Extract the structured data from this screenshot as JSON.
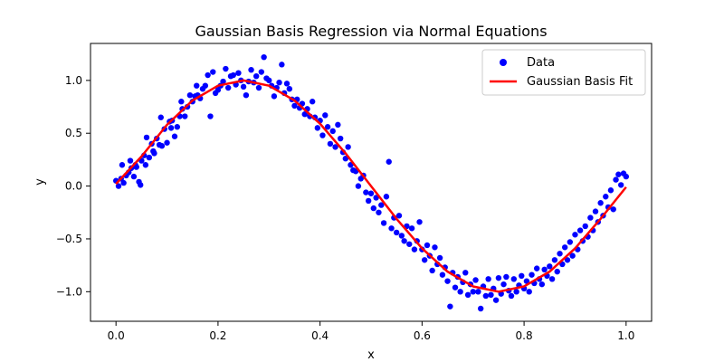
{
  "chart_data": {
    "type": "scatter",
    "title": "Gaussian Basis Regression via Normal Equations",
    "xlabel": "x",
    "ylabel": "y",
    "xlim": [
      -0.05,
      1.05
    ],
    "ylim": [
      -1.28,
      1.35
    ],
    "xticks": [
      0.0,
      0.2,
      0.4,
      0.6,
      0.8,
      1.0
    ],
    "xtick_labels": [
      "0.0",
      "0.2",
      "0.4",
      "0.6",
      "0.8",
      "1.0"
    ],
    "yticks": [
      -1.0,
      -0.5,
      0.0,
      0.5,
      1.0
    ],
    "ytick_labels": [
      "−1.0",
      "−0.5",
      "0.0",
      "0.5",
      "1.0"
    ],
    "grid": false,
    "legend_position": "top-right",
    "series": [
      {
        "name": "Data",
        "kind": "scatter",
        "color": "#0000ff",
        "points": [
          [
            0.0,
            0.05
          ],
          [
            0.005,
            0.0
          ],
          [
            0.01,
            0.07
          ],
          [
            0.012,
            0.2
          ],
          [
            0.015,
            0.03
          ],
          [
            0.02,
            0.1
          ],
          [
            0.025,
            0.13
          ],
          [
            0.028,
            0.24
          ],
          [
            0.03,
            0.17
          ],
          [
            0.035,
            0.09
          ],
          [
            0.038,
            0.2
          ],
          [
            0.04,
            0.18
          ],
          [
            0.045,
            0.04
          ],
          [
            0.048,
            0.01
          ],
          [
            0.05,
            0.24
          ],
          [
            0.055,
            0.29
          ],
          [
            0.058,
            0.2
          ],
          [
            0.06,
            0.46
          ],
          [
            0.065,
            0.27
          ],
          [
            0.07,
            0.4
          ],
          [
            0.073,
            0.33
          ],
          [
            0.075,
            0.31
          ],
          [
            0.08,
            0.45
          ],
          [
            0.085,
            0.39
          ],
          [
            0.088,
            0.65
          ],
          [
            0.09,
            0.38
          ],
          [
            0.095,
            0.54
          ],
          [
            0.1,
            0.41
          ],
          [
            0.105,
            0.61
          ],
          [
            0.108,
            0.55
          ],
          [
            0.11,
            0.62
          ],
          [
            0.115,
            0.47
          ],
          [
            0.12,
            0.56
          ],
          [
            0.125,
            0.66
          ],
          [
            0.128,
            0.8
          ],
          [
            0.13,
            0.73
          ],
          [
            0.135,
            0.66
          ],
          [
            0.14,
            0.75
          ],
          [
            0.145,
            0.86
          ],
          [
            0.15,
            0.8
          ],
          [
            0.155,
            0.85
          ],
          [
            0.158,
            0.95
          ],
          [
            0.16,
            0.86
          ],
          [
            0.165,
            0.83
          ],
          [
            0.17,
            0.92
          ],
          [
            0.175,
            0.95
          ],
          [
            0.18,
            1.05
          ],
          [
            0.185,
            0.66
          ],
          [
            0.19,
            1.08
          ],
          [
            0.195,
            0.88
          ],
          [
            0.2,
            0.91
          ],
          [
            0.205,
            0.95
          ],
          [
            0.21,
            0.99
          ],
          [
            0.215,
            1.11
          ],
          [
            0.22,
            0.93
          ],
          [
            0.225,
            1.04
          ],
          [
            0.23,
            1.05
          ],
          [
            0.235,
            0.96
          ],
          [
            0.24,
            1.07
          ],
          [
            0.245,
            1.0
          ],
          [
            0.25,
            0.94
          ],
          [
            0.255,
            0.86
          ],
          [
            0.26,
            0.99
          ],
          [
            0.265,
            1.1
          ],
          [
            0.27,
            0.98
          ],
          [
            0.275,
            1.04
          ],
          [
            0.28,
            0.93
          ],
          [
            0.285,
            1.08
          ],
          [
            0.29,
            1.22
          ],
          [
            0.295,
            1.02
          ],
          [
            0.3,
            1.0
          ],
          [
            0.305,
            0.95
          ],
          [
            0.31,
            0.85
          ],
          [
            0.315,
            0.93
          ],
          [
            0.32,
            0.98
          ],
          [
            0.325,
            1.15
          ],
          [
            0.33,
            0.88
          ],
          [
            0.335,
            0.97
          ],
          [
            0.34,
            0.92
          ],
          [
            0.345,
            0.82
          ],
          [
            0.35,
            0.76
          ],
          [
            0.355,
            0.82
          ],
          [
            0.36,
            0.74
          ],
          [
            0.365,
            0.78
          ],
          [
            0.37,
            0.68
          ],
          [
            0.375,
            0.73
          ],
          [
            0.38,
            0.66
          ],
          [
            0.385,
            0.8
          ],
          [
            0.39,
            0.65
          ],
          [
            0.395,
            0.55
          ],
          [
            0.4,
            0.62
          ],
          [
            0.405,
            0.48
          ],
          [
            0.41,
            0.67
          ],
          [
            0.415,
            0.56
          ],
          [
            0.42,
            0.4
          ],
          [
            0.425,
            0.52
          ],
          [
            0.43,
            0.37
          ],
          [
            0.435,
            0.58
          ],
          [
            0.44,
            0.45
          ],
          [
            0.445,
            0.32
          ],
          [
            0.45,
            0.26
          ],
          [
            0.455,
            0.37
          ],
          [
            0.46,
            0.2
          ],
          [
            0.465,
            0.15
          ],
          [
            0.47,
            0.14
          ],
          [
            0.475,
            0.0
          ],
          [
            0.48,
            0.07
          ],
          [
            0.485,
            0.1
          ],
          [
            0.49,
            -0.06
          ],
          [
            0.495,
            -0.14
          ],
          [
            0.5,
            -0.07
          ],
          [
            0.505,
            -0.21
          ],
          [
            0.51,
            -0.11
          ],
          [
            0.515,
            -0.25
          ],
          [
            0.52,
            -0.18
          ],
          [
            0.525,
            -0.35
          ],
          [
            0.53,
            -0.1
          ],
          [
            0.535,
            0.23
          ],
          [
            0.54,
            -0.4
          ],
          [
            0.545,
            -0.3
          ],
          [
            0.55,
            -0.44
          ],
          [
            0.555,
            -0.28
          ],
          [
            0.56,
            -0.47
          ],
          [
            0.565,
            -0.52
          ],
          [
            0.57,
            -0.38
          ],
          [
            0.575,
            -0.55
          ],
          [
            0.58,
            -0.4
          ],
          [
            0.585,
            -0.6
          ],
          [
            0.59,
            -0.52
          ],
          [
            0.595,
            -0.34
          ],
          [
            0.6,
            -0.6
          ],
          [
            0.605,
            -0.7
          ],
          [
            0.61,
            -0.56
          ],
          [
            0.615,
            -0.66
          ],
          [
            0.62,
            -0.8
          ],
          [
            0.625,
            -0.58
          ],
          [
            0.63,
            -0.74
          ],
          [
            0.635,
            -0.68
          ],
          [
            0.64,
            -0.84
          ],
          [
            0.645,
            -0.77
          ],
          [
            0.65,
            -0.9
          ],
          [
            0.655,
            -1.14
          ],
          [
            0.66,
            -0.82
          ],
          [
            0.665,
            -0.96
          ],
          [
            0.67,
            -0.86
          ],
          [
            0.675,
            -1.0
          ],
          [
            0.68,
            -0.91
          ],
          [
            0.685,
            -0.82
          ],
          [
            0.69,
            -1.03
          ],
          [
            0.695,
            -0.93
          ],
          [
            0.7,
            -1.0
          ],
          [
            0.705,
            -0.89
          ],
          [
            0.71,
            -1.0
          ],
          [
            0.715,
            -1.16
          ],
          [
            0.72,
            -0.95
          ],
          [
            0.725,
            -1.04
          ],
          [
            0.73,
            -0.88
          ],
          [
            0.735,
            -1.03
          ],
          [
            0.74,
            -0.97
          ],
          [
            0.745,
            -1.08
          ],
          [
            0.75,
            -0.87
          ],
          [
            0.755,
            -1.02
          ],
          [
            0.76,
            -0.93
          ],
          [
            0.765,
            -0.86
          ],
          [
            0.77,
            -0.99
          ],
          [
            0.775,
            -1.04
          ],
          [
            0.78,
            -0.88
          ],
          [
            0.785,
            -1.0
          ],
          [
            0.79,
            -0.94
          ],
          [
            0.795,
            -0.85
          ],
          [
            0.8,
            -0.97
          ],
          [
            0.805,
            -0.9
          ],
          [
            0.81,
            -1.0
          ],
          [
            0.815,
            -0.84
          ],
          [
            0.82,
            -0.92
          ],
          [
            0.825,
            -0.78
          ],
          [
            0.83,
            -0.88
          ],
          [
            0.835,
            -0.93
          ],
          [
            0.84,
            -0.79
          ],
          [
            0.845,
            -0.85
          ],
          [
            0.85,
            -0.76
          ],
          [
            0.855,
            -0.88
          ],
          [
            0.86,
            -0.7
          ],
          [
            0.865,
            -0.81
          ],
          [
            0.87,
            -0.64
          ],
          [
            0.875,
            -0.74
          ],
          [
            0.88,
            -0.58
          ],
          [
            0.885,
            -0.7
          ],
          [
            0.89,
            -0.53
          ],
          [
            0.895,
            -0.66
          ],
          [
            0.9,
            -0.46
          ],
          [
            0.905,
            -0.6
          ],
          [
            0.91,
            -0.42
          ],
          [
            0.915,
            -0.52
          ],
          [
            0.92,
            -0.38
          ],
          [
            0.925,
            -0.48
          ],
          [
            0.93,
            -0.3
          ],
          [
            0.935,
            -0.42
          ],
          [
            0.94,
            -0.24
          ],
          [
            0.945,
            -0.34
          ],
          [
            0.95,
            -0.16
          ],
          [
            0.955,
            -0.28
          ],
          [
            0.96,
            -0.1
          ],
          [
            0.965,
            -0.2
          ],
          [
            0.97,
            -0.04
          ],
          [
            0.975,
            -0.22
          ],
          [
            0.98,
            0.06
          ],
          [
            0.985,
            0.11
          ],
          [
            0.99,
            0.01
          ],
          [
            0.995,
            0.12
          ],
          [
            1.0,
            0.09
          ]
        ]
      },
      {
        "name": "Gaussian Basis Fit",
        "kind": "line",
        "color": "#ff0000",
        "x": [
          0.0,
          0.05,
          0.1,
          0.15,
          0.2,
          0.25,
          0.3,
          0.35,
          0.4,
          0.45,
          0.5,
          0.55,
          0.6,
          0.65,
          0.7,
          0.75,
          0.8,
          0.85,
          0.9,
          0.95,
          1.0
        ],
        "y": [
          0.02,
          0.28,
          0.58,
          0.81,
          0.95,
          1.0,
          0.95,
          0.81,
          0.59,
          0.31,
          0.0,
          -0.31,
          -0.59,
          -0.81,
          -0.95,
          -1.0,
          -0.95,
          -0.81,
          -0.59,
          -0.31,
          -0.01
        ]
      }
    ]
  }
}
